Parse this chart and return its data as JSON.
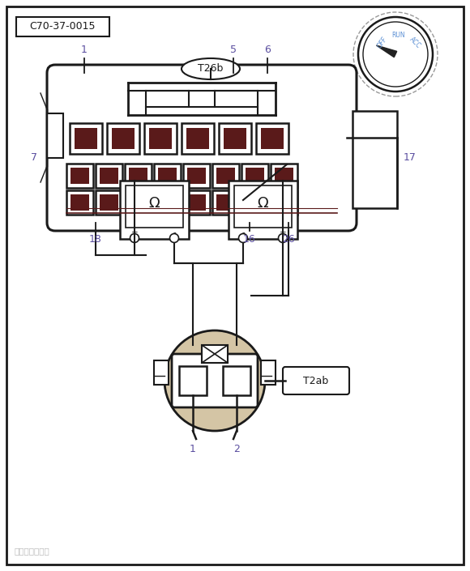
{
  "bg_color": "#ffffff",
  "border_color": "#1a1a1a",
  "label_color": "#5b4fa0",
  "dark_brown": "#5a1a1a",
  "connector_label": "C70-37-0015",
  "t26b_label": "T26b",
  "t2ab_label": "T2ab",
  "watermark": "汽车维修技术网"
}
